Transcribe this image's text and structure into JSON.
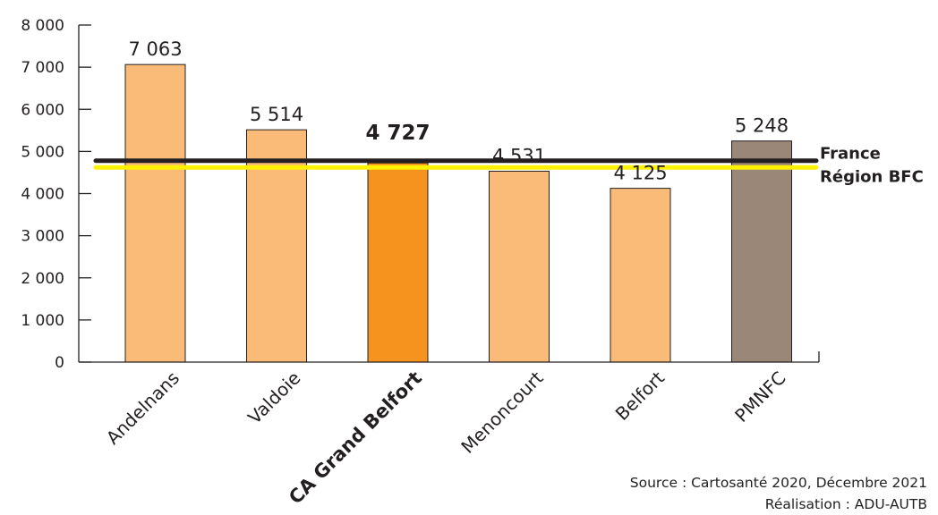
{
  "chart_data": {
    "type": "bar",
    "categories": [
      "Andelnans",
      "Valdoie",
      "CA Grand Belfort",
      "Menoncourt",
      "Belfort",
      "PMNFC"
    ],
    "values": [
      7063,
      5514,
      4727,
      4531,
      4125,
      5248
    ],
    "value_labels": [
      "7 063",
      "5 514",
      "4 727",
      "4 531",
      "4 125",
      "5 248"
    ],
    "bar_colors": [
      "#f9bb77",
      "#f9bb77",
      "#f6921e",
      "#f9bb77",
      "#f9bb77",
      "#9b8778"
    ],
    "highlight_index": 2,
    "ylim": [
      0,
      8000
    ],
    "y_ticks": [
      0,
      1000,
      2000,
      3000,
      4000,
      5000,
      6000,
      7000,
      8000
    ],
    "y_tick_labels": [
      "0",
      "1 000",
      "2 000",
      "3 000",
      "4 000",
      "5 000",
      "6 000",
      "7 000",
      "8 000"
    ],
    "reference_lines": [
      {
        "name": "France",
        "value": 4780,
        "color": "#231f20"
      },
      {
        "name": "Région BFC",
        "value": 4620,
        "color": "#fff200"
      }
    ],
    "grid": false,
    "title": "",
    "xlabel": "",
    "ylabel": ""
  },
  "footer": {
    "source": "Source : Cartosanté 2020, Décembre 2021",
    "credit": "Réalisation : ADU-AUTB"
  }
}
